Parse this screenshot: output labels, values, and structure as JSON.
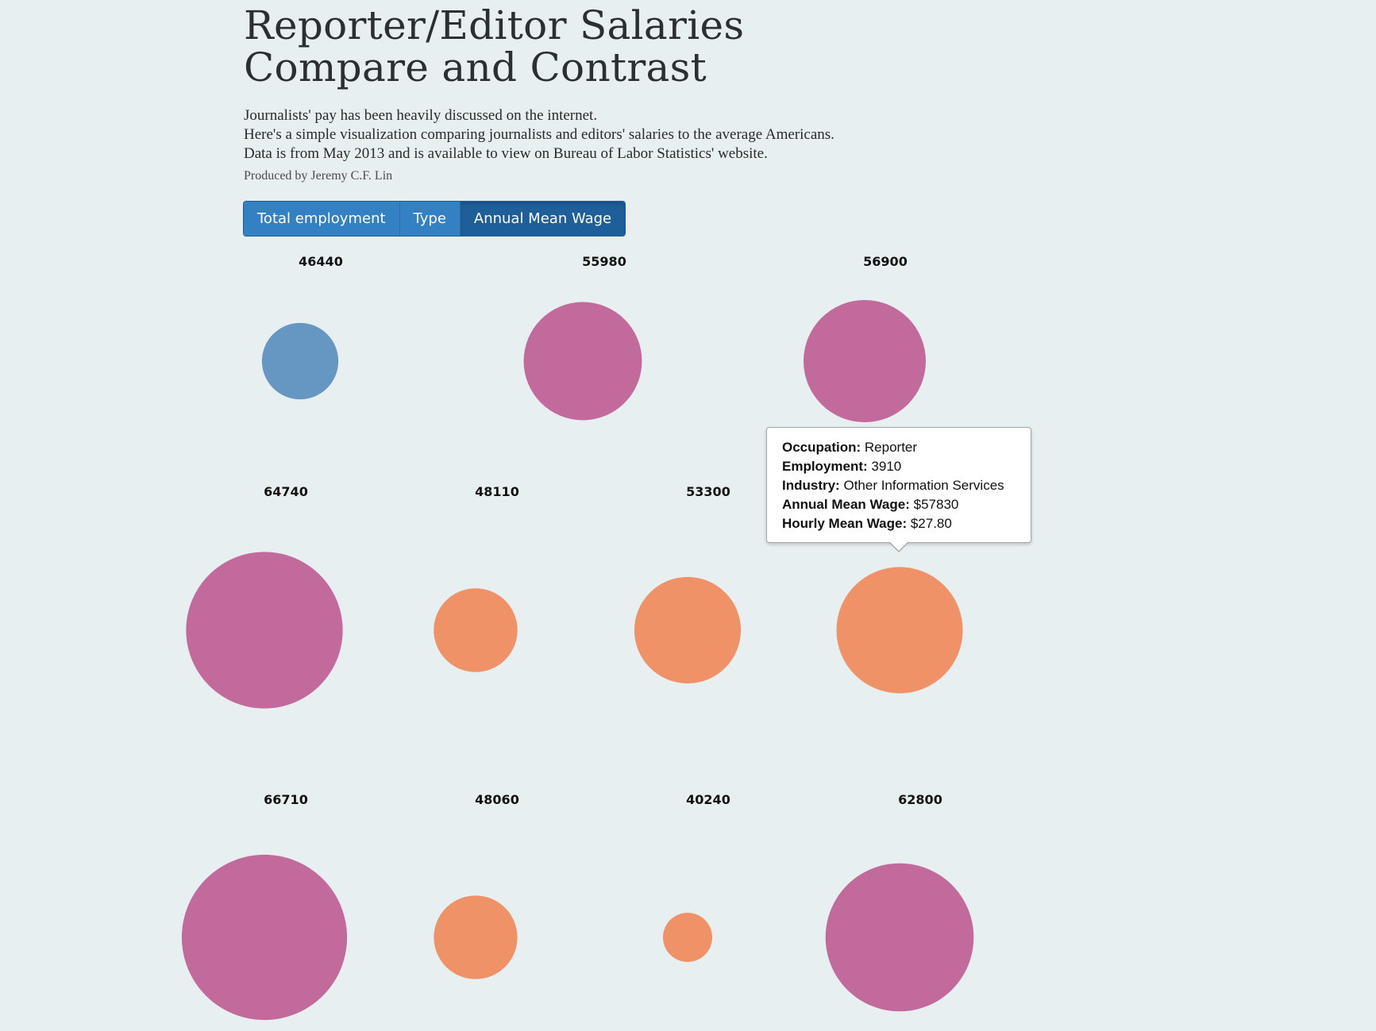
{
  "header": {
    "title_line1": "Reporter/Editor Salaries",
    "title_line2": "Compare and Contrast",
    "desc_line1": "Journalists' pay has been heavily discussed on the internet.",
    "desc_line2": "Here's a simple visualization comparing journalists and editors' salaries to the average Americans.",
    "desc_line3": "Data is from May 2013 and is available to view on Bureau of Labor Statistics' website.",
    "credit": "Produced by Jeremy C.F. Lin"
  },
  "buttons": {
    "total_employment": "Total employment",
    "type": "Type",
    "annual_mean_wage": "Annual Mean Wage",
    "active": "annual_mean_wage"
  },
  "colors": {
    "blue": "#6597c2",
    "magenta": "#c26a9b",
    "orange": "#ef9268"
  },
  "chart_data": {
    "type": "bubble",
    "values": [
      46440,
      55980,
      56900,
      64740,
      48110,
      53300,
      57830,
      66710,
      48060,
      40240,
      62800
    ],
    "labels": [
      "46440",
      "55980",
      "56900",
      "64740",
      "48110",
      "53300",
      "",
      "66710",
      "48060",
      "40240",
      "62800"
    ],
    "color_keys": [
      "blue",
      "magenta",
      "magenta",
      "magenta",
      "orange",
      "orange",
      "orange",
      "magenta",
      "orange",
      "orange",
      "magenta"
    ]
  },
  "tooltip": {
    "occupation_label": "Occupation:",
    "occupation": "Reporter",
    "employment_label": "Employment:",
    "employment": "3910",
    "industry_label": "Industry:",
    "industry": "Other Information Services",
    "annual_label": "Annual Mean Wage:",
    "annual": "$57830",
    "hourly_label": "Hourly Mean Wage:",
    "hourly": "$27.80"
  }
}
